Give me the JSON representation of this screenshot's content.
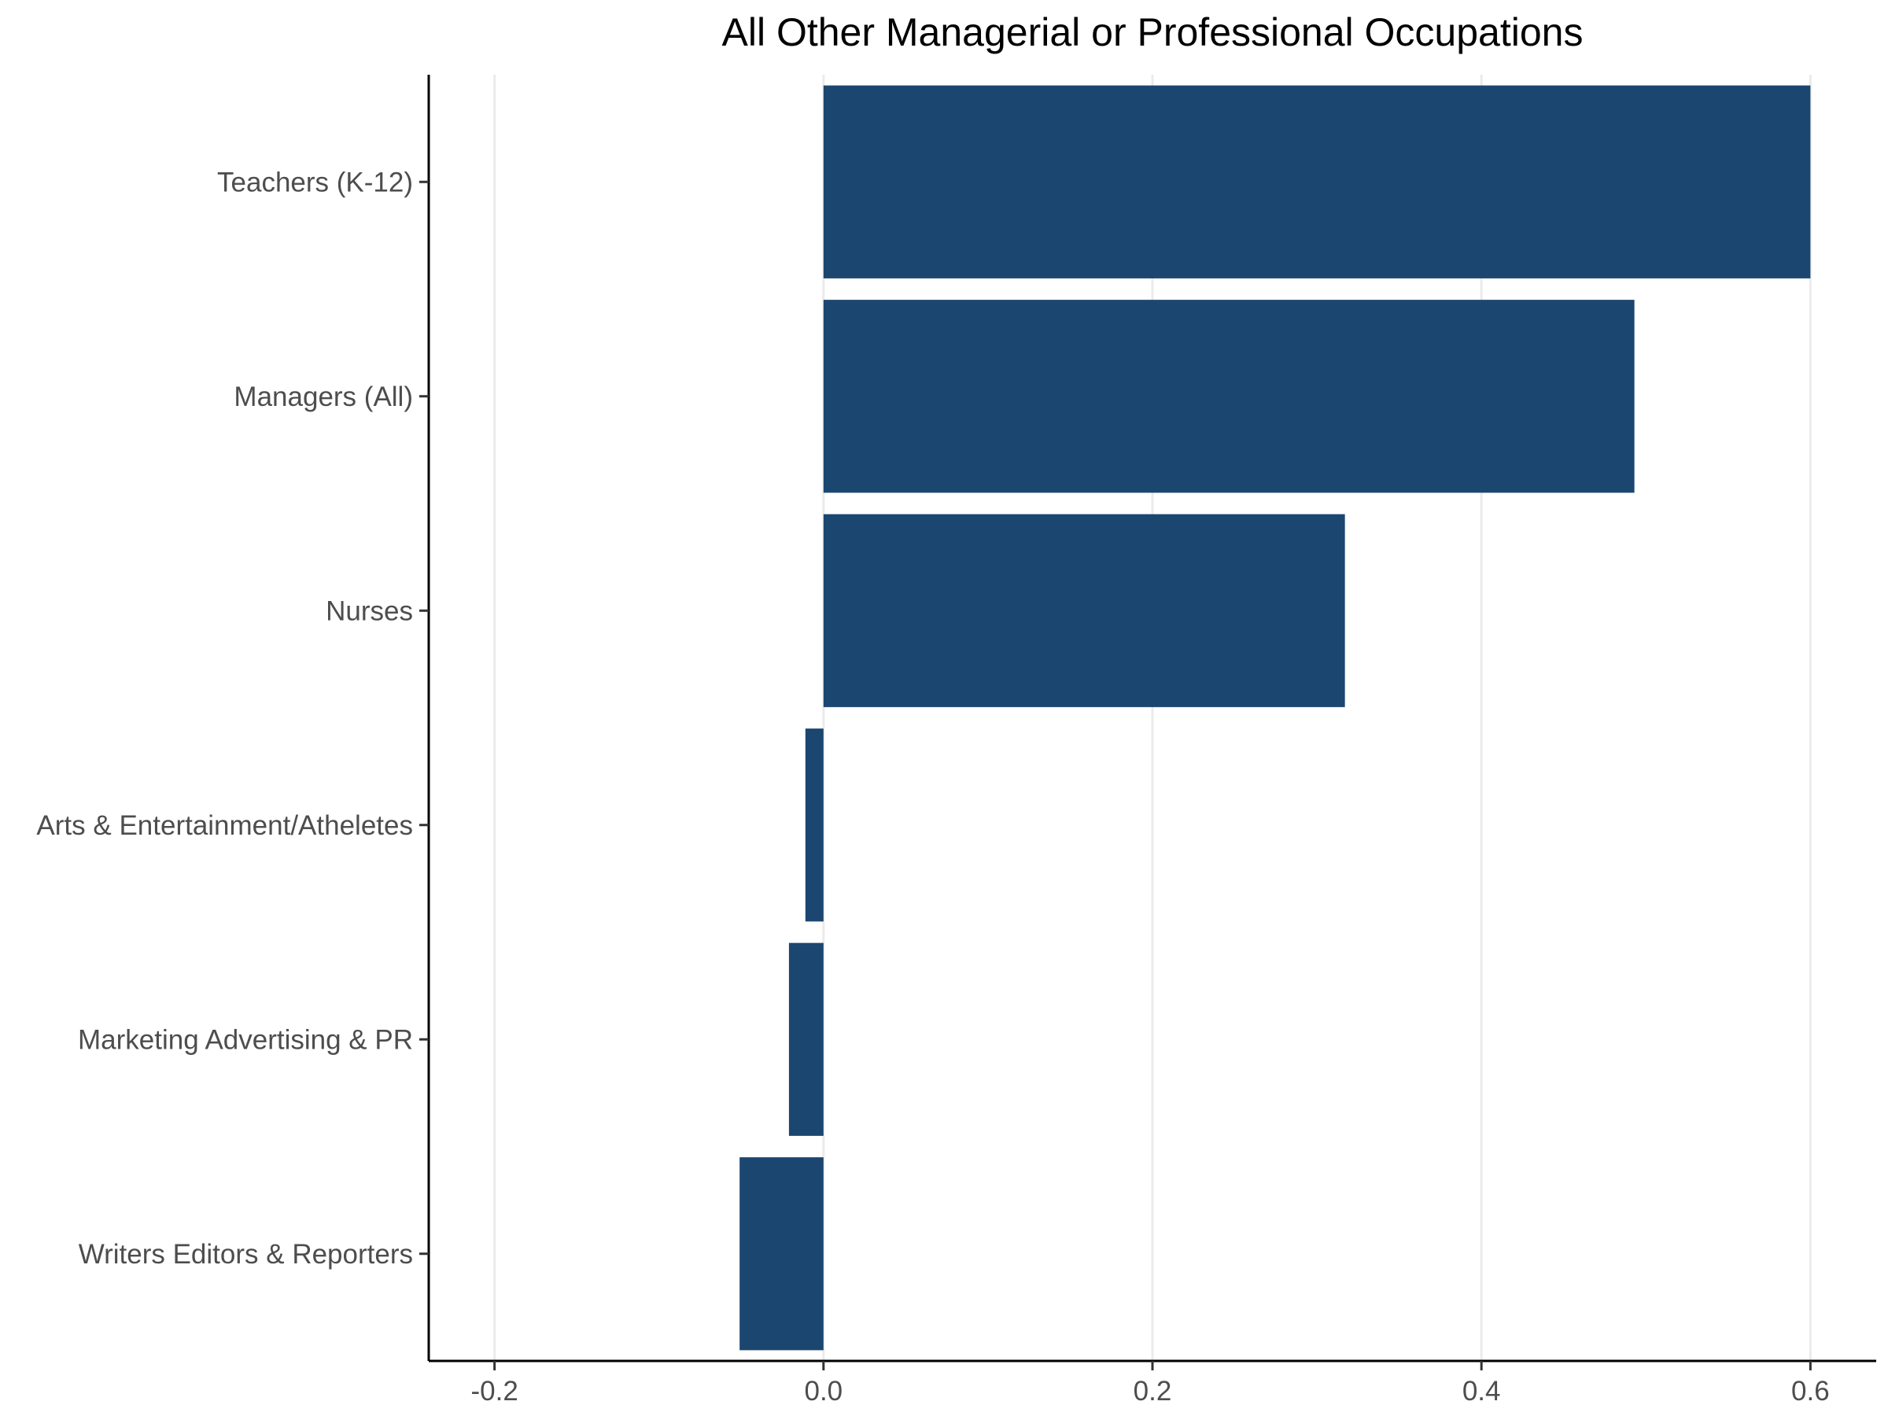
{
  "chart_data": {
    "type": "bar",
    "orientation": "horizontal",
    "title": "All Other Managerial or Professional Occupations",
    "xlabel": "",
    "ylabel": "",
    "categories": [
      "Teachers (K-12)",
      "Managers (All)",
      "Nurses",
      "Arts & Entertainment/Atheletes",
      "Marketing Advertising & PR",
      "Writers Editors & Reporters"
    ],
    "values": [
      0.6,
      0.493,
      0.317,
      -0.011,
      -0.021,
      -0.051
    ],
    "xlim": [
      -0.24,
      0.64
    ],
    "x_ticks": [
      -0.2,
      0.0,
      0.2,
      0.4,
      0.6
    ],
    "x_tick_labels": [
      "-0.2",
      "0.0",
      "0.2",
      "0.4",
      "0.6"
    ],
    "grid": "vertical-major",
    "legend": "none",
    "bar_color": "#1b4670"
  }
}
